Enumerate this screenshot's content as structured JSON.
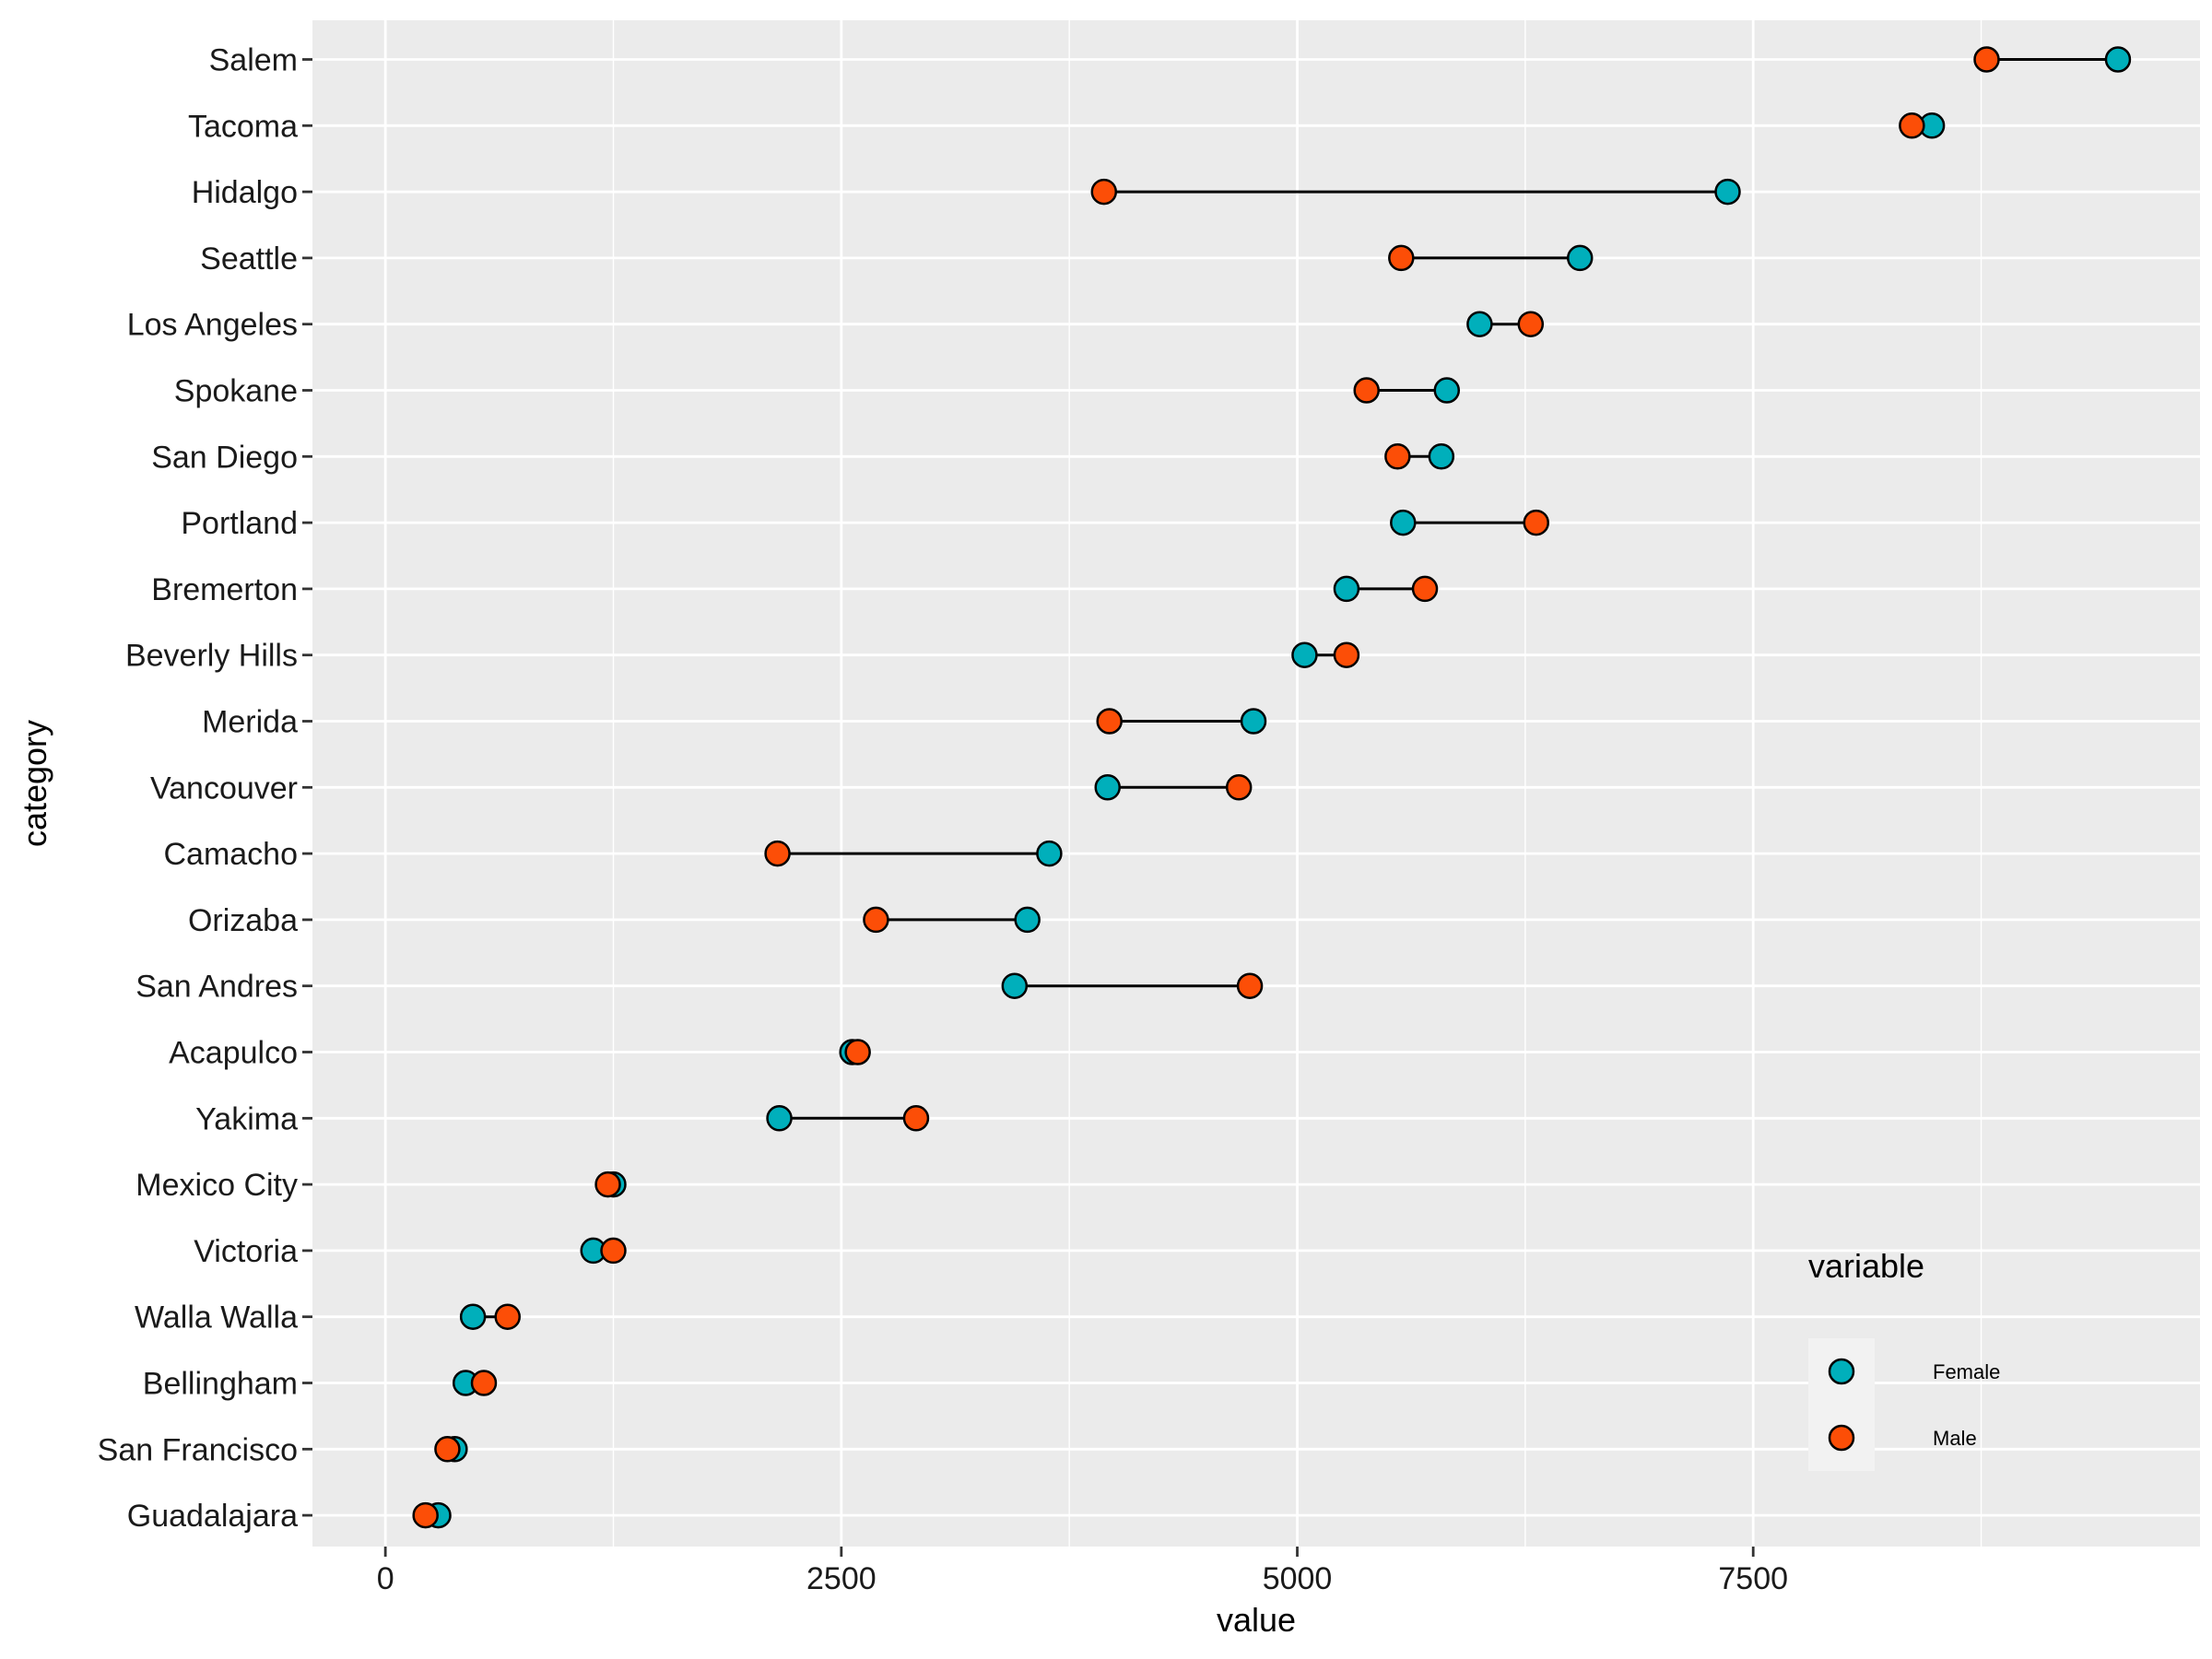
{
  "chart_data": {
    "type": "scatter",
    "subtype": "dumbbell",
    "title": "",
    "xlabel": "value",
    "ylabel": "category",
    "xlim": [
      -400,
      9950
    ],
    "x_ticks": [
      0,
      2500,
      5000,
      7500
    ],
    "x_tick_labels": [
      "0",
      "2500",
      "5000",
      "7500"
    ],
    "grid": true,
    "legend": {
      "title": "variable",
      "placement": "bottom-right"
    },
    "categories": [
      "Salem",
      "Tacoma",
      "Hidalgo",
      "Seattle",
      "Los Angeles",
      "Spokane",
      "San Diego",
      "Portland",
      "Bremerton",
      "Beverly Hills",
      "Merida",
      "Vancouver",
      "Camacho",
      "Orizaba",
      "San Andres",
      "Acapulco",
      "Yakima",
      "Mexico City",
      "Victoria",
      "Walla Walla",
      "Bellingham",
      "San Francisco",
      "Guadalajara"
    ],
    "series": [
      {
        "name": "Female",
        "color": "#00AFBB",
        "values": [
          9500,
          8480,
          7360,
          6550,
          6000,
          5820,
          5790,
          5580,
          5270,
          5040,
          4760,
          3960,
          3640,
          3520,
          3450,
          2560,
          2160,
          1250,
          1140,
          480,
          440,
          380,
          290
        ]
      },
      {
        "name": "Male",
        "color": "#FC4E07",
        "values": [
          8780,
          8370,
          3940,
          5570,
          6280,
          5380,
          5550,
          6310,
          5700,
          5270,
          3970,
          4680,
          2150,
          2690,
          4740,
          2590,
          2910,
          1220,
          1250,
          670,
          540,
          340,
          220
        ]
      }
    ]
  }
}
